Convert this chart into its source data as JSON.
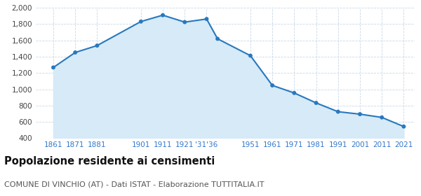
{
  "years": [
    1861,
    1871,
    1881,
    1901,
    1911,
    1921,
    1931,
    1936,
    1951,
    1961,
    1971,
    1981,
    1991,
    2001,
    2011,
    2021
  ],
  "population": [
    1268,
    1452,
    1537,
    1832,
    1910,
    1825,
    1863,
    1620,
    1413,
    1048,
    955,
    833,
    725,
    695,
    655,
    543
  ],
  "tick_positions": [
    1861,
    1871,
    1881,
    1901,
    1911,
    1921,
    1931,
    1951,
    1961,
    1971,
    1981,
    1991,
    2001,
    2011,
    2021
  ],
  "tick_labels": [
    "1861",
    "1871",
    "1881",
    "1901",
    "1911",
    "1921",
    "'31'36",
    "1951",
    "1961",
    "1971",
    "1981",
    "1991",
    "2001",
    "2011",
    "2021"
  ],
  "ylim": [
    400,
    2000
  ],
  "yticks": [
    400,
    600,
    800,
    1000,
    1200,
    1400,
    1600,
    1800,
    2000
  ],
  "xlim_left": 1853,
  "xlim_right": 2026,
  "line_color": "#2878BE",
  "fill_color": "#D6EAF8",
  "marker_color": "#2878BE",
  "bg_color": "#FFFFFF",
  "grid_color": "#C8D8E8",
  "title": "Popolazione residente ai censimenti",
  "subtitle": "COMUNE DI VINCHIO (AT) - Dati ISTAT - Elaborazione TUTTITALIA.IT",
  "title_fontsize": 10.5,
  "subtitle_fontsize": 8,
  "tick_fontsize": 7.5,
  "x_tick_color": "#3377CC",
  "y_tick_color": "#444444"
}
